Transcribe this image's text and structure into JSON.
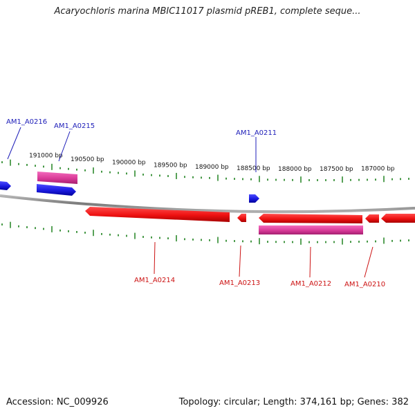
{
  "title": "Acaryochloris marina MBIC11017 plasmid pREB1, complete seque...",
  "footer": {
    "accession": "Accession: NC_009926",
    "summary": "Topology: circular; Length: 374,161 bp; Genes: 382"
  },
  "colors": {
    "forward_cds": "#1a1ad6",
    "reverse_cds": "#e80d0d",
    "gene_feature": "#d63b9a",
    "tick_marks": "#2e8b2e",
    "backbone": "#8c8c8c",
    "forward_label": "#1c1cb8",
    "reverse_label": "#cc1111"
  },
  "scale_labels": [
    "191000 bp",
    "190500 bp",
    "190000 bp",
    "189500 bp",
    "189000 bp",
    "188500 bp",
    "188000 bp",
    "187500 bp",
    "187000 bp"
  ],
  "forward_labels": [
    "AM1_A0216",
    "AM1_A0215",
    "AM1_A0211"
  ],
  "reverse_labels": [
    "AM1_A0214",
    "AM1_A0213",
    "AM1_A0212",
    "AM1_A0210"
  ]
}
